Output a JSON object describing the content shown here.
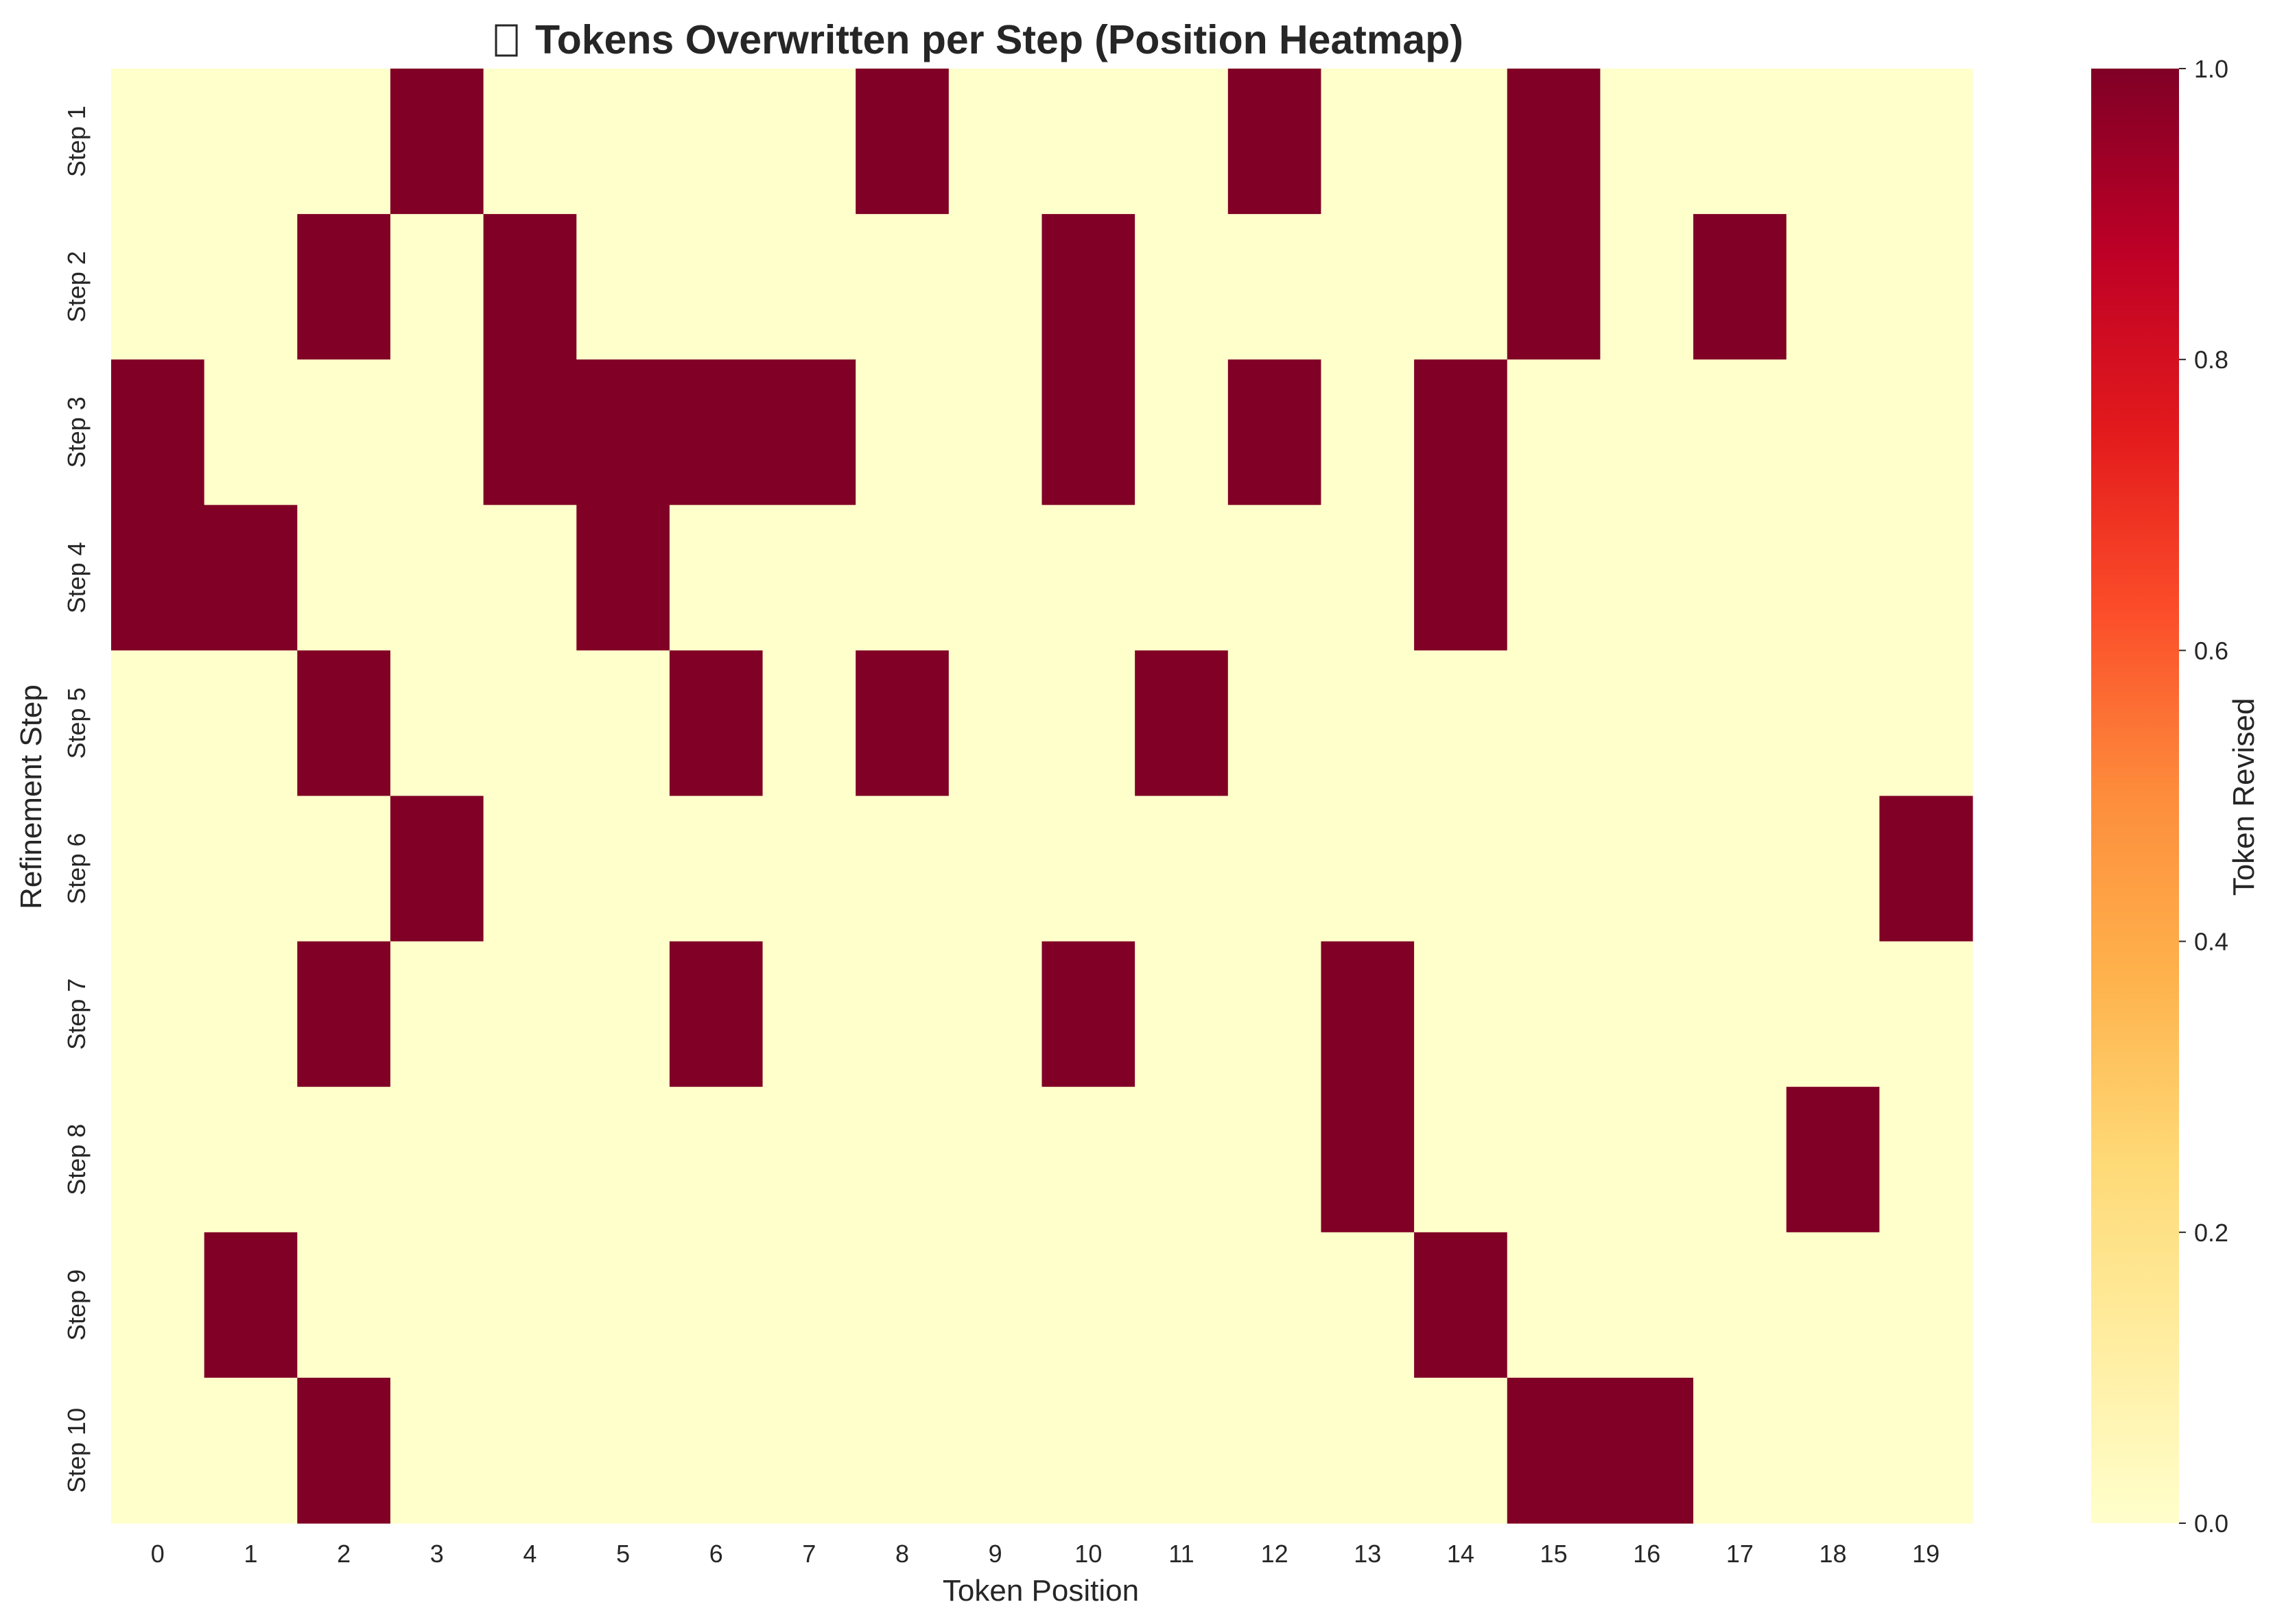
{
  "chart_data": {
    "type": "heatmap",
    "title": "Tokens Overwritten per Step (Position Heatmap)",
    "title_icon": "missing-glyph-box",
    "xlabel": "Token Position",
    "ylabel": "Refinement Step",
    "x_categories": [
      "0",
      "1",
      "2",
      "3",
      "4",
      "5",
      "6",
      "7",
      "8",
      "9",
      "10",
      "11",
      "12",
      "13",
      "14",
      "15",
      "16",
      "17",
      "18",
      "19"
    ],
    "y_categories": [
      "Step 1",
      "Step 2",
      "Step 3",
      "Step 4",
      "Step 5",
      "Step 6",
      "Step 7",
      "Step 8",
      "Step 9",
      "Step 10"
    ],
    "values": [
      [
        0,
        0,
        0,
        1,
        0,
        0,
        0,
        0,
        1,
        0,
        0,
        0,
        1,
        0,
        0,
        1,
        0,
        0,
        0,
        0
      ],
      [
        0,
        0,
        1,
        0,
        1,
        0,
        0,
        0,
        0,
        0,
        1,
        0,
        0,
        0,
        0,
        1,
        0,
        1,
        0,
        0
      ],
      [
        1,
        0,
        0,
        0,
        1,
        1,
        1,
        1,
        0,
        0,
        1,
        0,
        1,
        0,
        1,
        0,
        0,
        0,
        0,
        0
      ],
      [
        1,
        1,
        0,
        0,
        0,
        1,
        0,
        0,
        0,
        0,
        0,
        0,
        0,
        0,
        1,
        0,
        0,
        0,
        0,
        0
      ],
      [
        0,
        0,
        1,
        0,
        0,
        0,
        1,
        0,
        1,
        0,
        0,
        1,
        0,
        0,
        0,
        0,
        0,
        0,
        0,
        0
      ],
      [
        0,
        0,
        0,
        1,
        0,
        0,
        0,
        0,
        0,
        0,
        0,
        0,
        0,
        0,
        0,
        0,
        0,
        0,
        0,
        1
      ],
      [
        0,
        0,
        1,
        0,
        0,
        0,
        1,
        0,
        0,
        0,
        1,
        0,
        0,
        1,
        0,
        0,
        0,
        0,
        0,
        0
      ],
      [
        0,
        0,
        0,
        0,
        0,
        0,
        0,
        0,
        0,
        0,
        0,
        0,
        0,
        1,
        0,
        0,
        0,
        0,
        1,
        0
      ],
      [
        0,
        1,
        0,
        0,
        0,
        0,
        0,
        0,
        0,
        0,
        0,
        0,
        0,
        0,
        1,
        0,
        0,
        0,
        0,
        0
      ],
      [
        0,
        0,
        1,
        0,
        0,
        0,
        0,
        0,
        0,
        0,
        0,
        0,
        0,
        0,
        0,
        1,
        1,
        0,
        0,
        0
      ]
    ],
    "colorbar": {
      "label": "Token Revised",
      "range": [
        0.0,
        1.0
      ],
      "ticks": [
        "0.0",
        "0.2",
        "0.4",
        "0.6",
        "0.8",
        "1.0"
      ],
      "colormap": "YlOrRd",
      "low_color": "#ffffcc",
      "high_color": "#800026"
    },
    "grid": false
  }
}
